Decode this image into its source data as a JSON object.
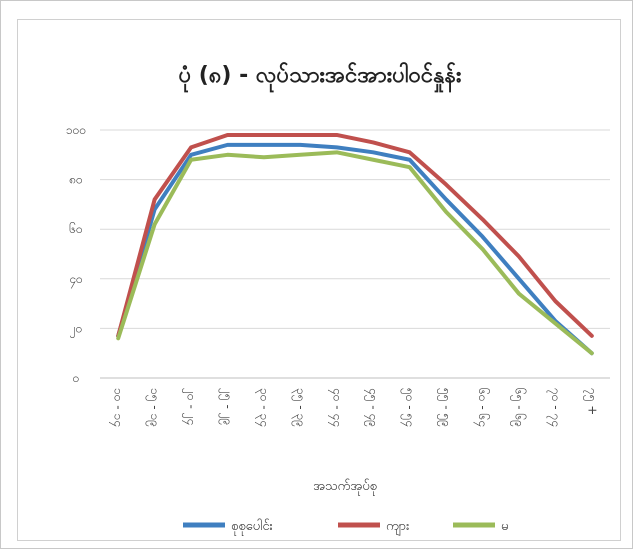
{
  "chart_data": {
    "type": "line",
    "title": "ပုံ (၈) - လုပ်သားအင်အားပါဝင်နှုန်း",
    "xlabel": "အသက်အုပ်စု",
    "ylabel": "",
    "ylim": [
      0,
      100
    ],
    "yticks": [
      "၀",
      "၂၀",
      "၄၀",
      "၆၀",
      "၈၀",
      "၁၀၀"
    ],
    "categories": [
      "၁၀ - ၁၄",
      "၁၅ - ၁၉",
      "၂၀ - ၂၄",
      "၂၅ - ၂၉",
      "၃၀ - ၃၄",
      "၃၅ - ၃၉",
      "၄၀ - ၄၄",
      "၄၅ - ၄၉",
      "၅၀ - ၅၄",
      "၅၅ - ၅၉",
      "၆၀ - ၆၄",
      "၆၅ - ၆၉",
      "၇၀ - ၇၄",
      "၇၅ +"
    ],
    "series": [
      {
        "name": "စုစုပေါင်း",
        "color": "#3f7fc0",
        "values": [
          17,
          68,
          90,
          94,
          94,
          94,
          93,
          91,
          88,
          72,
          57,
          40,
          23,
          10
        ]
      },
      {
        "name": "ကျား",
        "color": "#c0504d",
        "values": [
          17,
          72,
          93,
          98,
          98,
          98,
          98,
          95,
          91,
          78,
          64,
          49,
          31,
          17
        ]
      },
      {
        "name": "မ",
        "color": "#9bbb59",
        "values": [
          16,
          62,
          88,
          90,
          89,
          90,
          91,
          88,
          85,
          67,
          52,
          34,
          22,
          10
        ]
      }
    ],
    "grid": "horizontal",
    "legend": "bottom"
  }
}
